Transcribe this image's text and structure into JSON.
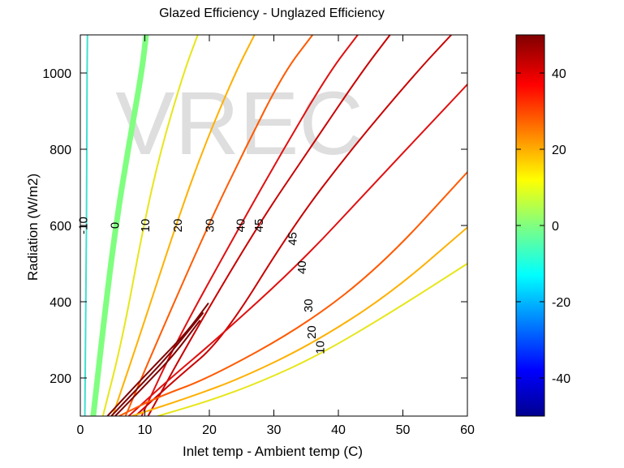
{
  "chart_data": {
    "type": "contour",
    "title": "Glazed Efficiency - Unglazed Efficiency",
    "xlabel": "Inlet temp - Ambient temp (C)",
    "ylabel": "Radiation (W/m2)",
    "watermark": "VREC",
    "xlim": [
      0,
      60
    ],
    "ylim": [
      100,
      1100
    ],
    "xticks": [
      0,
      10,
      20,
      30,
      40,
      50,
      60
    ],
    "yticks": [
      200,
      400,
      600,
      800,
      1000
    ],
    "colorbar": {
      "range": [
        -50,
        50
      ],
      "ticks": [
        -40,
        -20,
        0,
        20,
        40
      ],
      "colormap": "jet"
    },
    "contours": [
      {
        "level": -10,
        "label": "-10",
        "color": "#40e0d0",
        "points": [
          [
            0.7,
            100
          ],
          [
            0.8,
            300
          ],
          [
            0.9,
            500
          ],
          [
            1.0,
            700
          ],
          [
            1.0,
            900
          ],
          [
            1.1,
            1100
          ]
        ]
      },
      {
        "level": 0,
        "label": "0",
        "color": "#7fff7f",
        "thick": true,
        "points": [
          [
            2.0,
            100
          ],
          [
            4.0,
            400
          ],
          [
            5.5,
            600
          ],
          [
            7.4,
            800
          ],
          [
            9.5,
            1000
          ],
          [
            10.2,
            1100
          ]
        ]
      },
      {
        "level": 10,
        "label": "10",
        "color": "#e6e61a",
        "points": [
          [
            3.5,
            100
          ],
          [
            6.5,
            300
          ],
          [
            9.8,
            600
          ],
          [
            12.5,
            800
          ],
          [
            16.0,
            1000
          ],
          [
            18.2,
            1100
          ]
        ]
      },
      {
        "level": 20,
        "label": "20",
        "color": "#ffb000",
        "points": [
          [
            5.0,
            100
          ],
          [
            9.0,
            300
          ],
          [
            14.8,
            600
          ],
          [
            19.0,
            800
          ],
          [
            24.0,
            1000
          ],
          [
            27.0,
            1100
          ]
        ]
      },
      {
        "level": 30,
        "label": "30",
        "color": "#ff5a00",
        "points": [
          [
            7.0,
            100
          ],
          [
            12.0,
            300
          ],
          [
            19.8,
            600
          ],
          [
            25.5,
            800
          ],
          [
            31.5,
            1000
          ],
          [
            36.0,
            1100
          ]
        ]
      },
      {
        "level": 40,
        "label": "40",
        "color": "#e01010",
        "points": [
          [
            9.5,
            100
          ],
          [
            15.0,
            300
          ],
          [
            24.8,
            600
          ],
          [
            31.5,
            800
          ],
          [
            38.5,
            1000
          ],
          [
            43.0,
            1100
          ]
        ]
      },
      {
        "level": 45,
        "label": "45",
        "color": "#c80000",
        "points": [
          [
            10.5,
            100
          ],
          [
            17.0,
            300
          ],
          [
            27.5,
            600
          ],
          [
            35.5,
            800
          ],
          [
            43.5,
            1000
          ],
          [
            48.0,
            1100
          ]
        ]
      },
      {
        "level": 45,
        "label": "45",
        "color": "#c80000",
        "points": [
          [
            8.5,
            100
          ],
          [
            15.0,
            200
          ],
          [
            22.0,
            300
          ],
          [
            33.0,
            600
          ],
          [
            42.0,
            800
          ],
          [
            52.0,
            1000
          ],
          [
            57.5,
            1100
          ]
        ]
      },
      {
        "level": 40,
        "label": "40",
        "color": "#e01010",
        "points": [
          [
            7.5,
            100
          ],
          [
            14.0,
            200
          ],
          [
            21.0,
            300
          ],
          [
            34.0,
            500
          ],
          [
            45.0,
            700
          ],
          [
            55.0,
            880
          ],
          [
            60.0,
            970
          ]
        ]
      },
      {
        "level": 30,
        "label": "30",
        "color": "#ff5a00",
        "points": [
          [
            6.0,
            100
          ],
          [
            12.0,
            150
          ],
          [
            20.0,
            200
          ],
          [
            35.0,
            340
          ],
          [
            47.0,
            500
          ],
          [
            60.0,
            740
          ]
        ]
      },
      {
        "level": 20,
        "label": "20",
        "color": "#ffb000",
        "points": [
          [
            8.0,
            100
          ],
          [
            17.0,
            150
          ],
          [
            25.0,
            200
          ],
          [
            36.0,
            290
          ],
          [
            48.0,
            420
          ],
          [
            60.0,
            595
          ]
        ]
      },
      {
        "level": 10,
        "label": "10",
        "color": "#e6e61a",
        "points": [
          [
            12.0,
            100
          ],
          [
            20.0,
            140
          ],
          [
            28.0,
            190
          ],
          [
            37.0,
            260
          ],
          [
            48.0,
            370
          ],
          [
            60.0,
            500
          ]
        ]
      },
      {
        "level": 50,
        "label": "",
        "color": "#800000",
        "points": [
          [
            4.2,
            100
          ],
          [
            8.0,
            170
          ],
          [
            12.5,
            250
          ],
          [
            16.5,
            320
          ],
          [
            19.8,
            395
          ]
        ]
      },
      {
        "level": 50,
        "label": "",
        "color": "#800000",
        "points": [
          [
            4.8,
            100
          ],
          [
            9.0,
            175
          ],
          [
            13.5,
            255
          ],
          [
            19.0,
            370
          ]
        ]
      },
      {
        "level": 50,
        "label": "",
        "color": "#800000",
        "points": [
          [
            5.4,
            100
          ],
          [
            10.0,
            180
          ],
          [
            14.5,
            260
          ],
          [
            18.5,
            350
          ]
        ]
      }
    ],
    "contour_labels": [
      {
        "text": "-10",
        "x": 0.6,
        "y": 600
      },
      {
        "text": "0",
        "x": 5.5,
        "y": 600
      },
      {
        "text": "10",
        "x": 10.2,
        "y": 600
      },
      {
        "text": "20",
        "x": 15.2,
        "y": 600
      },
      {
        "text": "30",
        "x": 20.2,
        "y": 600
      },
      {
        "text": "40",
        "x": 25.0,
        "y": 600
      },
      {
        "text": "45",
        "x": 27.8,
        "y": 600
      },
      {
        "text": "45",
        "x": 33.0,
        "y": 565
      },
      {
        "text": "40",
        "x": 34.5,
        "y": 490
      },
      {
        "text": "30",
        "x": 35.5,
        "y": 390
      },
      {
        "text": "20",
        "x": 36.0,
        "y": 320
      },
      {
        "text": "10",
        "x": 37.3,
        "y": 280
      }
    ]
  }
}
